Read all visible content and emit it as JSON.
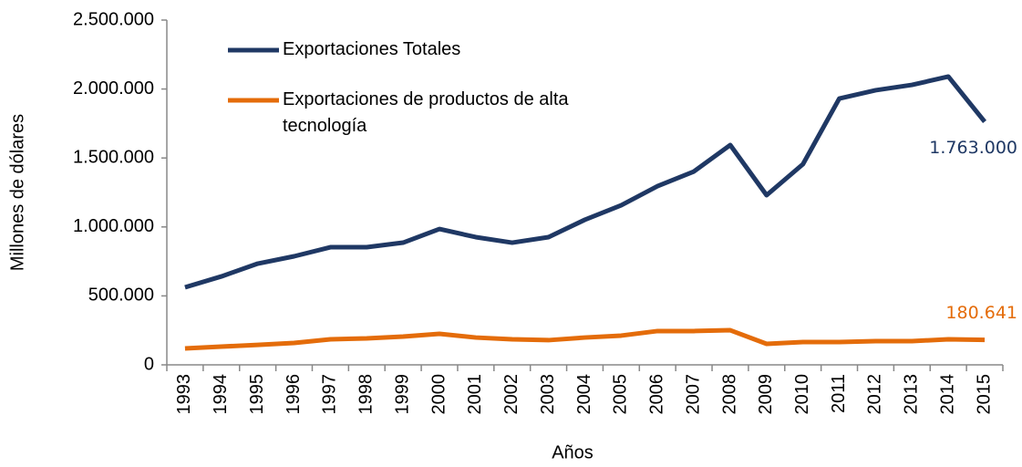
{
  "chart_data": {
    "type": "line",
    "x_label": "Años",
    "y_label": "Millones de dólares",
    "categories": [
      "1993",
      "1994",
      "1995",
      "1996",
      "1997",
      "1998",
      "1999",
      "2000",
      "2001",
      "2002",
      "2003",
      "2004",
      "2005",
      "2006",
      "2007",
      "2008",
      "2009",
      "2010",
      "2011",
      "2012",
      "2013",
      "2014",
      "2015"
    ],
    "series": [
      {
        "name": "Exportaciones Totales",
        "color": "#1f3864",
        "values": [
          562000,
          641000,
          734000,
          787000,
          853000,
          853000,
          886000,
          985000,
          926000,
          886000,
          926000,
          1052000,
          1157000,
          1296000,
          1402000,
          1594000,
          1230000,
          1455000,
          1931000,
          1991000,
          2030000,
          2090000,
          1763000
        ],
        "value_labels": [
          null,
          null,
          null,
          null,
          null,
          null,
          null,
          null,
          null,
          null,
          null,
          null,
          null,
          null,
          null,
          null,
          null,
          null,
          null,
          null,
          null,
          null,
          "1.763.000"
        ]
      },
      {
        "name": "Exportaciones de productos de alta tecnología",
        "color": "#e46c0a",
        "values": [
          119000,
          132000,
          145000,
          159000,
          185000,
          192000,
          205000,
          225000,
          198000,
          185000,
          179000,
          198000,
          212000,
          245000,
          245000,
          251000,
          152000,
          165000,
          165000,
          172000,
          172000,
          185000,
          180641
        ],
        "value_labels": [
          null,
          null,
          null,
          null,
          null,
          null,
          null,
          null,
          null,
          null,
          null,
          null,
          null,
          null,
          null,
          null,
          null,
          null,
          null,
          null,
          null,
          null,
          "180.641"
        ]
      }
    ],
    "ylim": [
      0,
      2500000
    ],
    "yticks": [
      0,
      {
        "value": 500000,
        "label": "500.000"
      },
      {
        "value": 1000000,
        "label": "1.000.000"
      },
      {
        "value": 1500000,
        "label": "1.500.000"
      },
      {
        "value": 2000000,
        "label": "2.000.000"
      },
      {
        "value": 2500000,
        "label": "2.500.000"
      }
    ],
    "grid": false,
    "legend": "top-left"
  }
}
